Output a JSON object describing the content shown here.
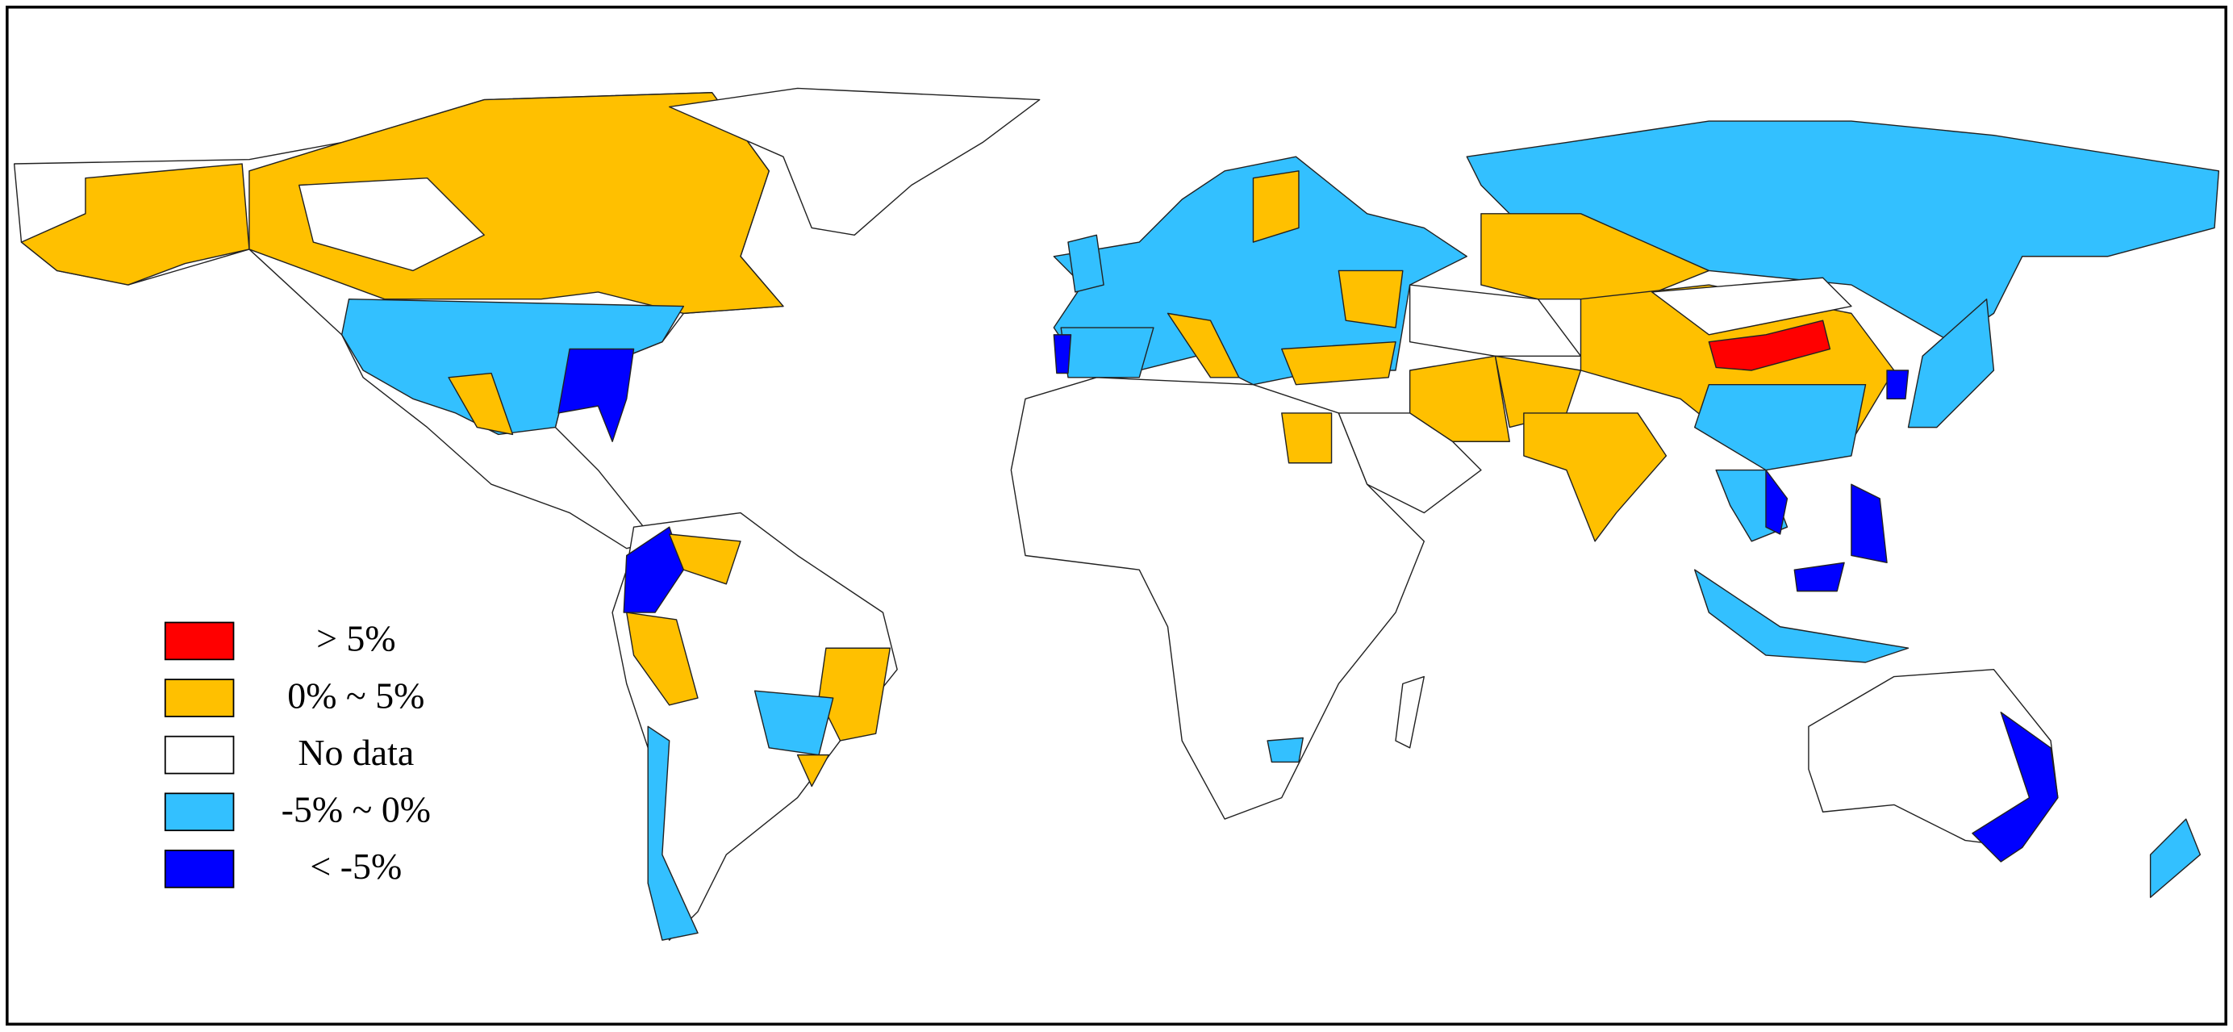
{
  "legend": {
    "items": [
      {
        "label": "> 5%",
        "color": "#ff0000"
      },
      {
        "label": "0% ~ 5%",
        "color": "#ffc000"
      },
      {
        "label": "No data",
        "color": "#ffffff"
      },
      {
        "label": "-5% ~ 0%",
        "color": "#33c0ff"
      },
      {
        "label": "< -5%",
        "color": "#0000ff"
      }
    ]
  }
}
